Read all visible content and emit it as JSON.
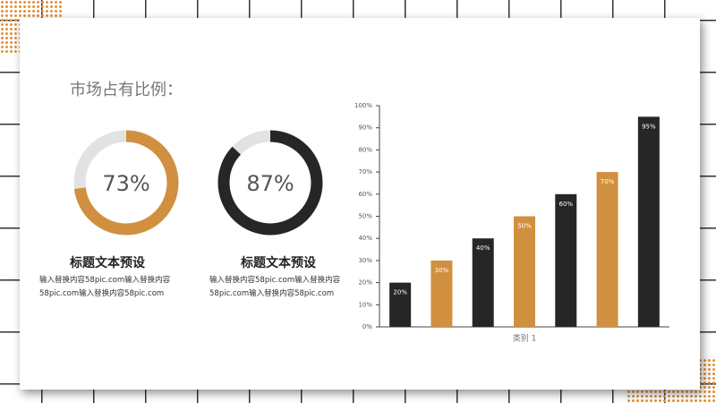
{
  "title": "市场占有比例：",
  "cards": [
    {
      "heading": "标题文本预设",
      "body": "输入替换内容58pic.com输入替换内容58pic.com输入替换内容58pic.com"
    },
    {
      "heading": "标题文本预设",
      "body": "输入替换内容58pic.com输入替换内容58pic.com输入替换内容58pic.com"
    }
  ],
  "chart_data": [
    {
      "type": "donut",
      "values": [
        73
      ],
      "value_labels": [
        "73%"
      ],
      "color": "#d0903f"
    },
    {
      "type": "donut",
      "values": [
        87
      ],
      "value_labels": [
        "87%"
      ],
      "color": "#262626"
    },
    {
      "type": "bar",
      "categories": [
        "类别 1"
      ],
      "series": [
        {
          "color": "#262626",
          "values": [
            20
          ],
          "value_labels": [
            "20%"
          ]
        },
        {
          "color": "#d0903f",
          "values": [
            30
          ],
          "value_labels": [
            "30%"
          ]
        },
        {
          "color": "#262626",
          "values": [
            40
          ],
          "value_labels": [
            "40%"
          ]
        },
        {
          "color": "#d0903f",
          "values": [
            50
          ],
          "value_labels": [
            "50%"
          ]
        },
        {
          "color": "#262626",
          "values": [
            60
          ],
          "value_labels": [
            "60%"
          ]
        },
        {
          "color": "#d0903f",
          "values": [
            70
          ],
          "value_labels": [
            "70%"
          ]
        },
        {
          "color": "#262626",
          "values": [
            95
          ],
          "value_labels": [
            "95%"
          ]
        }
      ],
      "ylim": [
        0,
        100
      ],
      "yticks": [
        {
          "value": 0,
          "label": "0%"
        },
        {
          "value": 10,
          "label": "10%"
        },
        {
          "value": 20,
          "label": "20%"
        },
        {
          "value": 30,
          "label": "30%"
        },
        {
          "value": 40,
          "label": "40%"
        },
        {
          "value": 50,
          "label": "50%"
        },
        {
          "value": 60,
          "label": "60%"
        },
        {
          "value": 70,
          "label": "70%"
        },
        {
          "value": 80,
          "label": "80%"
        },
        {
          "value": 90,
          "label": "90%"
        },
        {
          "value": 100,
          "label": "100%"
        }
      ]
    }
  ]
}
